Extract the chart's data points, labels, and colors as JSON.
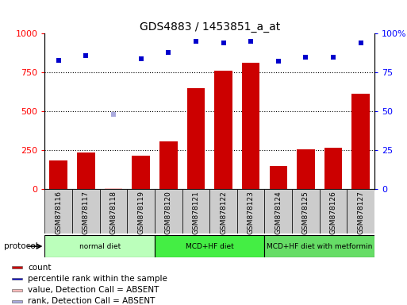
{
  "title": "GDS4883 / 1453851_a_at",
  "samples": [
    "GSM878116",
    "GSM878117",
    "GSM878118",
    "GSM878119",
    "GSM878120",
    "GSM878121",
    "GSM878122",
    "GSM878123",
    "GSM878124",
    "GSM878125",
    "GSM878126",
    "GSM878127"
  ],
  "counts": [
    185,
    235,
    5,
    215,
    305,
    650,
    760,
    810,
    150,
    255,
    265,
    615
  ],
  "percentiles": [
    83,
    86,
    null,
    84,
    88,
    95,
    94,
    95,
    82,
    85,
    85,
    94
  ],
  "absent_value_idx": 2,
  "absent_value": 5,
  "absent_rank_idx": 2,
  "absent_rank": 48,
  "bar_color": "#cc0000",
  "dot_color": "#0000cc",
  "absent_bar_color": "#ffbbbb",
  "absent_dot_color": "#aaaadd",
  "ylim_left": [
    0,
    1000
  ],
  "ylim_right": [
    0,
    100
  ],
  "yticks_left": [
    0,
    250,
    500,
    750,
    1000
  ],
  "yticks_right": [
    0,
    25,
    50,
    75,
    100
  ],
  "ytick_labels_right": [
    "0",
    "25",
    "50",
    "75",
    "100%"
  ],
  "protocols": [
    {
      "label": "normal diet",
      "start": 0,
      "end": 3,
      "color": "#bbffbb"
    },
    {
      "label": "MCD+HF diet",
      "start": 4,
      "end": 7,
      "color": "#44ee44"
    },
    {
      "label": "MCD+HF diet with metformin",
      "start": 8,
      "end": 11,
      "color": "#66dd66"
    }
  ],
  "protocol_label": "protocol",
  "bg_color": "#cccccc",
  "plot_bg": "#ffffff",
  "legend_items": [
    {
      "color": "#cc0000",
      "label": "count"
    },
    {
      "color": "#0000cc",
      "label": "percentile rank within the sample"
    },
    {
      "color": "#ffbbbb",
      "label": "value, Detection Call = ABSENT"
    },
    {
      "color": "#aaaadd",
      "label": "rank, Detection Call = ABSENT"
    }
  ]
}
